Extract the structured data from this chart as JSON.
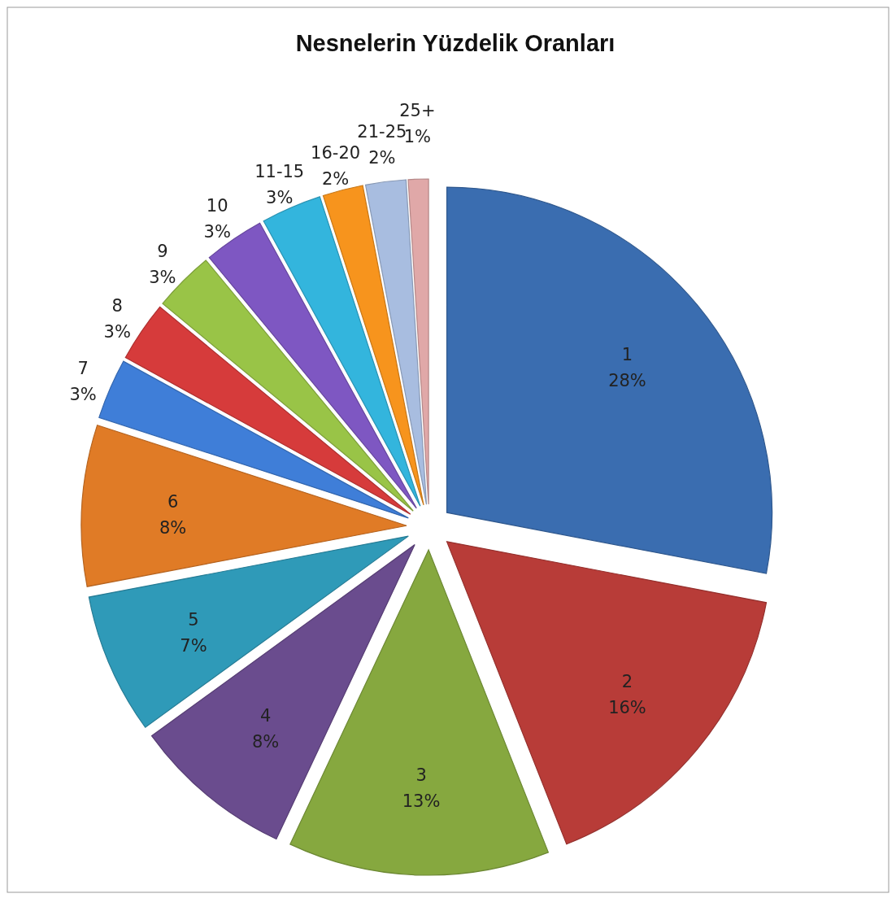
{
  "chart_data": {
    "type": "pie",
    "title": "Nesnelerin Yüzdelik Oranları",
    "categories": [
      "1",
      "2",
      "3",
      "4",
      "5",
      "6",
      "7",
      "8",
      "9",
      "10",
      "11-15",
      "16-20",
      "21-25",
      "25+"
    ],
    "values": [
      28,
      16,
      13,
      8,
      7,
      8,
      3,
      3,
      3,
      3,
      3,
      2,
      2,
      1
    ],
    "value_labels": [
      "28%",
      "16%",
      "13%",
      "8%",
      "7%",
      "8%",
      "3%",
      "3%",
      "3%",
      "3%",
      "3%",
      "2%",
      "2%",
      "1%"
    ],
    "colors": [
      "#3a6db0",
      "#b83c38",
      "#86a83f",
      "#6a4c8e",
      "#2f9ab8",
      "#e07b26",
      "#3f7ed8",
      "#d63b3b",
      "#99c447",
      "#7e57c2",
      "#33b5dd",
      "#f7941d",
      "#a8bde0",
      "#e0a8a8"
    ]
  }
}
